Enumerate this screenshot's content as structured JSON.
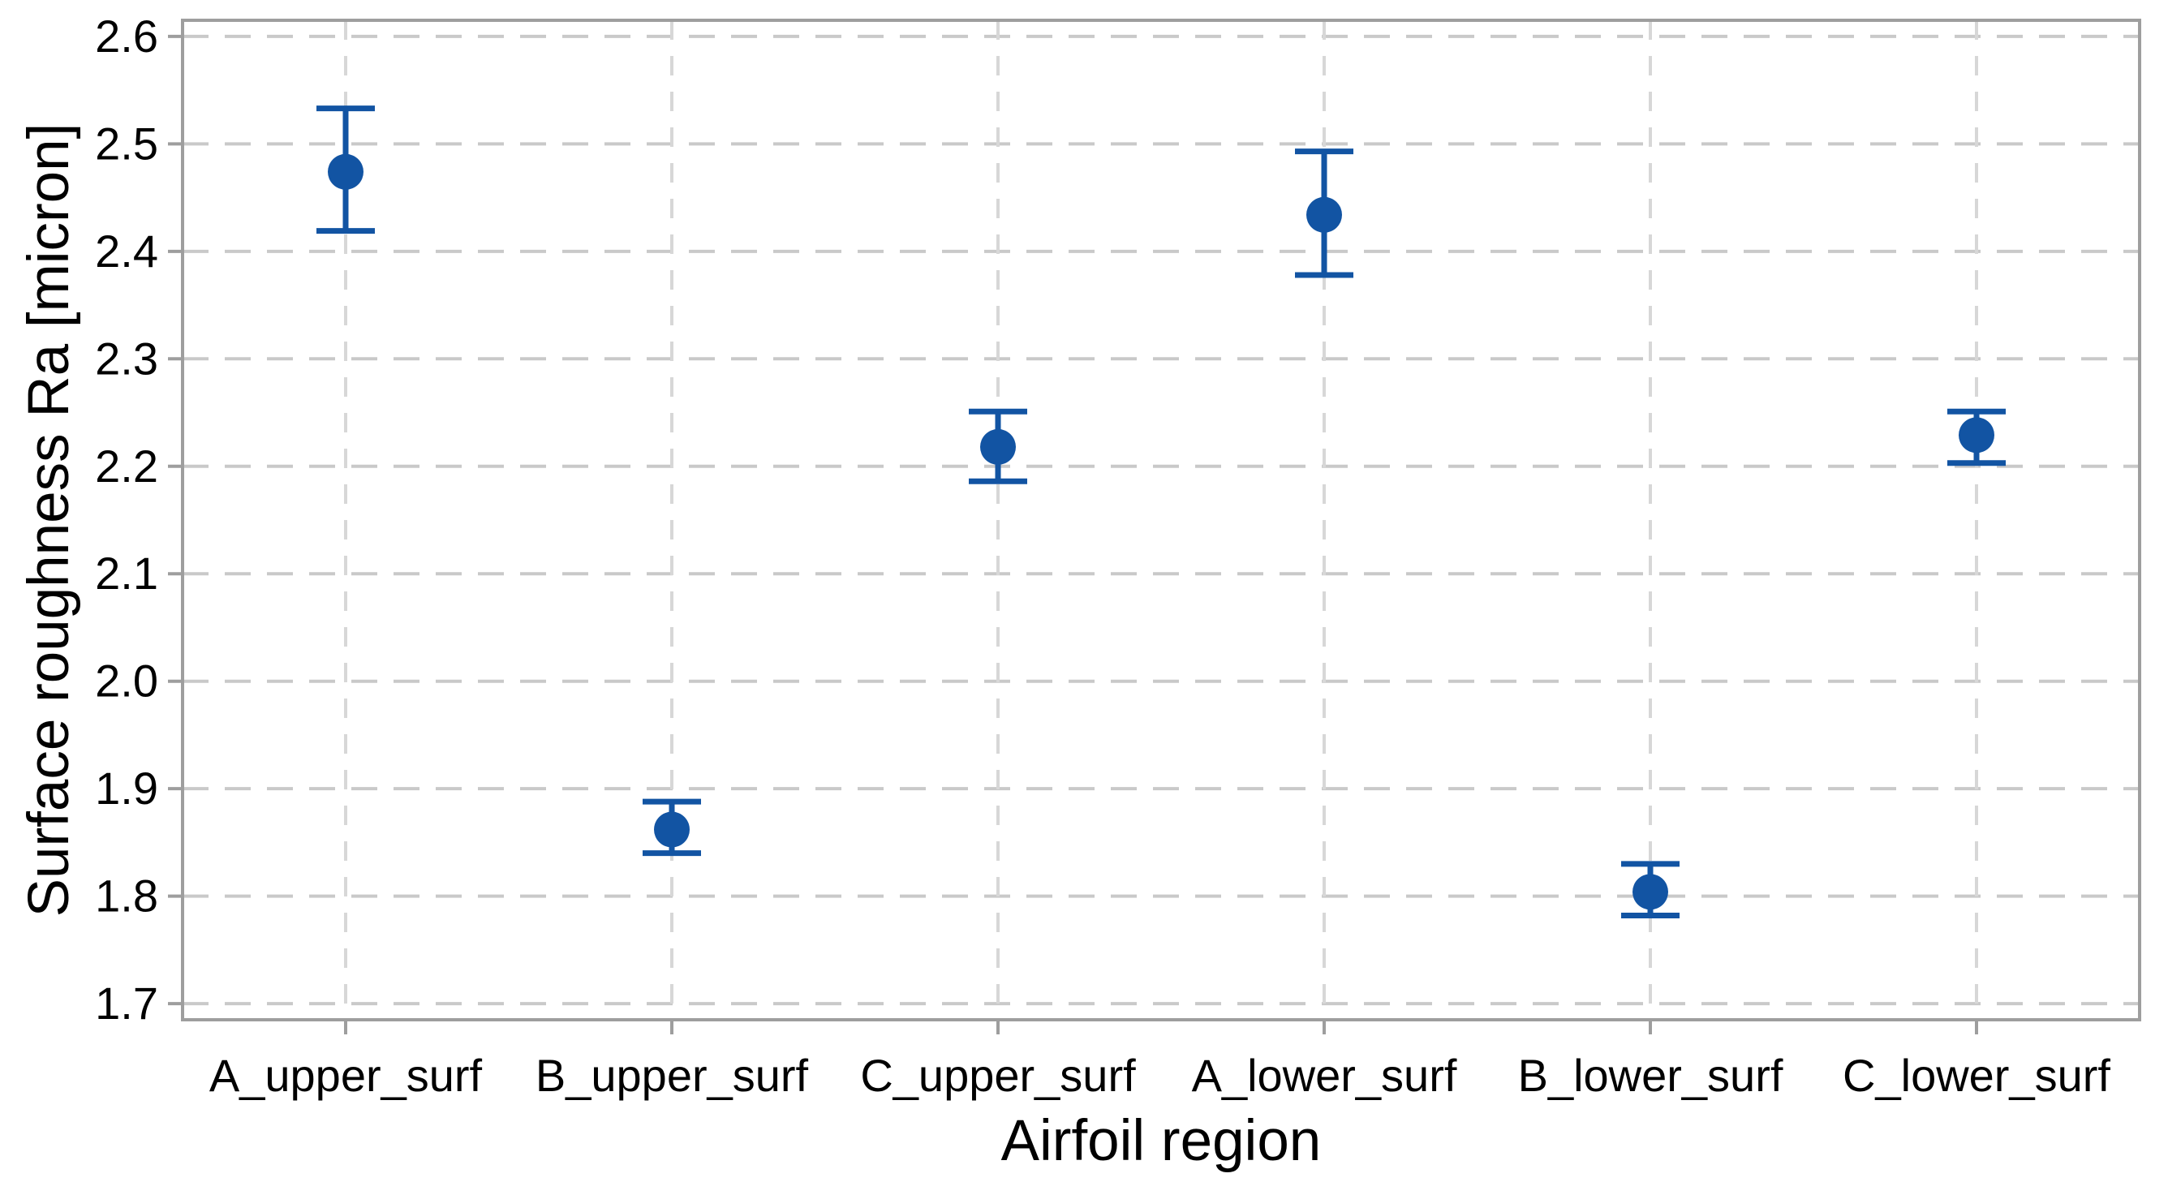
{
  "chart_data": {
    "type": "scatter",
    "title": "",
    "xlabel": "Airfoil region",
    "ylabel": "Surface roughness Ra [micron]",
    "categories": [
      "A_upper_surf",
      "B_upper_surf",
      "C_upper_surf",
      "A_lower_surf",
      "B_lower_surf",
      "C_lower_surf"
    ],
    "series": [
      {
        "name": "Surface roughness Ra",
        "values": [
          2.474,
          1.862,
          2.218,
          2.434,
          1.804,
          2.229
        ],
        "error_low": [
          2.419,
          1.84,
          2.186,
          2.378,
          1.782,
          2.203
        ],
        "error_high": [
          2.533,
          1.888,
          2.251,
          2.493,
          1.83,
          2.251
        ]
      }
    ],
    "ylim": [
      1.685,
      2.615
    ],
    "yticks": [
      1.7,
      1.8,
      1.9,
      2.0,
      2.1,
      2.2,
      2.3,
      2.4,
      2.5,
      2.6
    ],
    "ytick_decimals": 1,
    "grid": "dashed-horizontal-and-vertical",
    "legend_position": "none",
    "marker_shape": "circle-with-error-bars"
  },
  "style": {
    "marker_color": "#1254a3",
    "error_bar_color": "#1254a3",
    "grid_color_horizontal": "#c9c9c9",
    "grid_color_vertical": "#d7d7d7",
    "axis_border_color": "#9e9e9e",
    "tick_color": "#9e9e9e",
    "text_color": "#000000",
    "background_color": "#ffffff"
  }
}
